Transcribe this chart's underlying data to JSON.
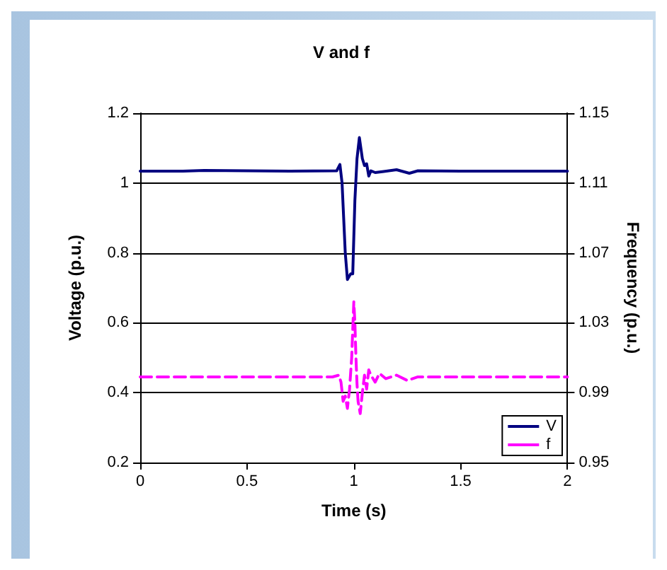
{
  "chart_data": {
    "type": "line",
    "title": "V and f",
    "xlabel": "Time (s)",
    "ylabel": "Voltage (p.u.)",
    "y2label": "Frequency (p.u.)",
    "xlim": [
      0,
      2
    ],
    "xticks": [
      0,
      0.5,
      1,
      1.5,
      2
    ],
    "ylim": [
      0.2,
      1.2
    ],
    "yticks": [
      0.2,
      0.4,
      0.6,
      0.8,
      1,
      1.2
    ],
    "y2lim": [
      0.95,
      1.15
    ],
    "y2ticks": [
      0.95,
      0.99,
      1.03,
      1.07,
      1.11,
      1.15
    ],
    "grid": "y",
    "legend": "bottom right",
    "marker": "none",
    "series": [
      {
        "name": "V",
        "color": "#000080",
        "line_style": "solid",
        "x": [
          0,
          0.2,
          0.3,
          0.5,
          0.7,
          0.92,
          0.935,
          0.945,
          0.96,
          0.97,
          0.985,
          0.995,
          1.005,
          1.015,
          1.026,
          1.04,
          1.05,
          1.06,
          1.07,
          1.08,
          1.1,
          1.14,
          1.2,
          1.26,
          1.3,
          1.5,
          2
        ],
        "values": [
          1.034,
          1.034,
          1.036,
          1.035,
          1.034,
          1.035,
          1.053,
          1.0,
          0.8,
          0.724,
          0.74,
          0.74,
          0.95,
          1.07,
          1.13,
          1.07,
          1.05,
          1.055,
          1.02,
          1.035,
          1.03,
          1.033,
          1.038,
          1.028,
          1.035,
          1.034,
          1.034
        ]
      },
      {
        "name": "f",
        "color": "#ff00ff",
        "line_style": "dashed",
        "axis": "y2",
        "x": [
          0,
          0.5,
          0.9,
          0.93,
          0.94,
          0.95,
          0.96,
          0.97,
          0.98,
          0.99,
          1.0,
          1.005,
          1.01,
          1.015,
          1.02,
          1.03,
          1.04,
          1.05,
          1.06,
          1.07,
          1.08,
          1.1,
          1.12,
          1.15,
          1.2,
          1.25,
          1.3,
          2
        ],
        "values": [
          0.999,
          0.999,
          0.999,
          1.0,
          0.996,
          0.985,
          0.988,
          0.981,
          0.992,
          1.01,
          1.042,
          1.03,
          1.01,
          0.995,
          0.985,
          0.978,
          0.99,
          1.0,
          0.992,
          1.003,
          1.0,
          0.996,
          1.001,
          0.998,
          1.0,
          0.997,
          0.999,
          0.999
        ]
      }
    ]
  }
}
